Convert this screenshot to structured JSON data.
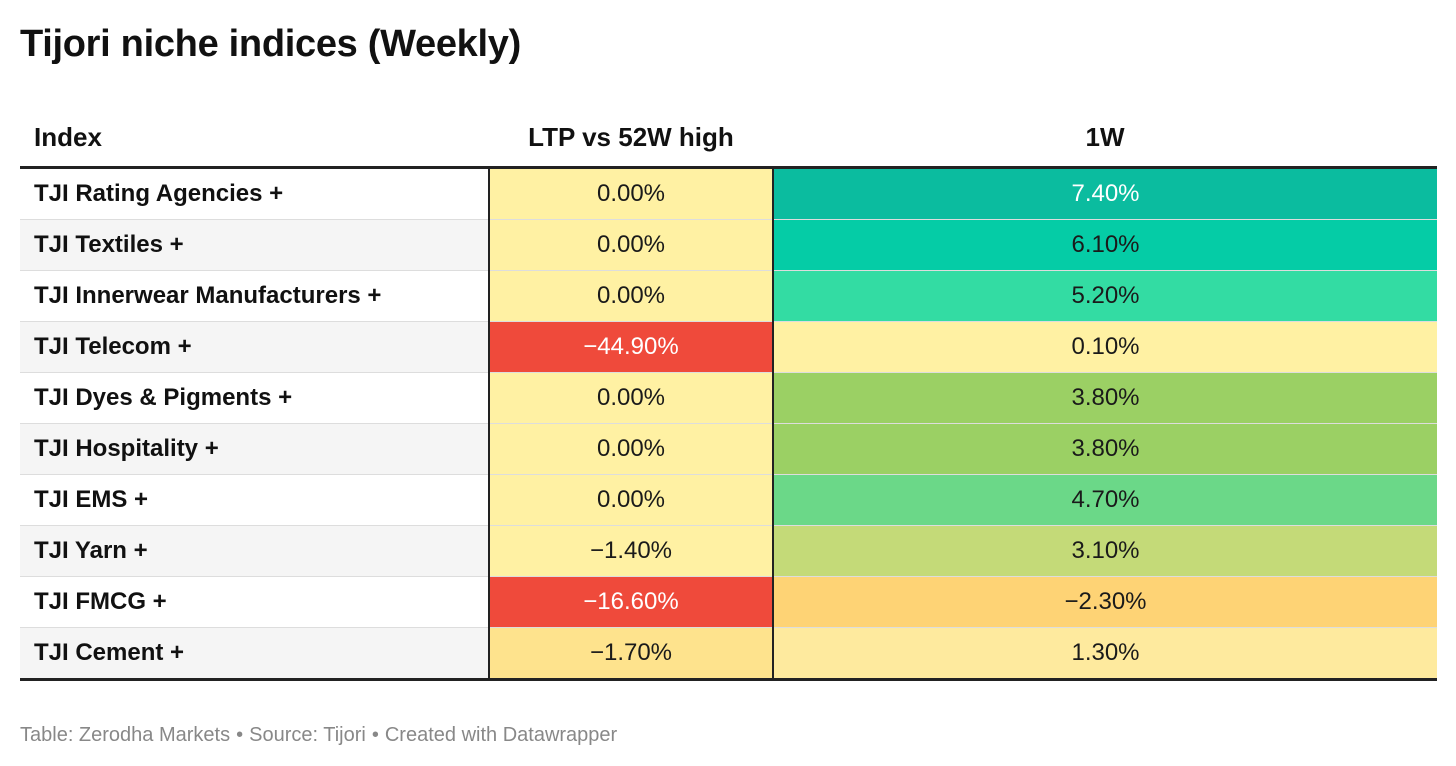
{
  "chart_data": {
    "type": "table",
    "title": "Tijori niche indices (Weekly)",
    "columns": [
      "Index",
      "LTP vs 52W high",
      "1W"
    ],
    "rows": [
      {
        "index": "TJI Rating Agencies +",
        "ltp_vs_52w_high": "0.00%",
        "one_week": "7.40%",
        "ltp_value": 0.0,
        "one_week_value": 7.4,
        "ltp_bg": "#fff1a3",
        "ltp_fg": "#1a1a1a",
        "one_week_bg": "#0bbc9f",
        "one_week_fg": "#ffffff"
      },
      {
        "index": "TJI Textiles +",
        "ltp_vs_52w_high": "0.00%",
        "one_week": "6.10%",
        "ltp_value": 0.0,
        "one_week_value": 6.1,
        "ltp_bg": "#fff1a3",
        "ltp_fg": "#1a1a1a",
        "one_week_bg": "#05cca6",
        "one_week_fg": "#1a1a1a"
      },
      {
        "index": "TJI Innerwear Manufacturers +",
        "ltp_vs_52w_high": "0.00%",
        "one_week": "5.20%",
        "ltp_value": 0.0,
        "one_week_value": 5.2,
        "ltp_bg": "#fff1a3",
        "ltp_fg": "#1a1a1a",
        "one_week_bg": "#33dca3",
        "one_week_fg": "#1a1a1a"
      },
      {
        "index": "TJI Telecom +",
        "ltp_vs_52w_high": "−44.90%",
        "one_week": "0.10%",
        "ltp_value": -44.9,
        "one_week_value": 0.1,
        "ltp_bg": "#ef4a3b",
        "ltp_fg": "#ffffff",
        "one_week_bg": "#fff1a3",
        "one_week_fg": "#1a1a1a"
      },
      {
        "index": "TJI Dyes & Pigments +",
        "ltp_vs_52w_high": "0.00%",
        "one_week": "3.80%",
        "ltp_value": 0.0,
        "one_week_value": 3.8,
        "ltp_bg": "#fff1a3",
        "ltp_fg": "#1a1a1a",
        "one_week_bg": "#9bd064",
        "one_week_fg": "#1a1a1a"
      },
      {
        "index": "TJI Hospitality +",
        "ltp_vs_52w_high": "0.00%",
        "one_week": "3.80%",
        "ltp_value": 0.0,
        "one_week_value": 3.8,
        "ltp_bg": "#fff1a3",
        "ltp_fg": "#1a1a1a",
        "one_week_bg": "#9bd064",
        "one_week_fg": "#1a1a1a"
      },
      {
        "index": "TJI EMS +",
        "ltp_vs_52w_high": "0.00%",
        "one_week": "4.70%",
        "ltp_value": 0.0,
        "one_week_value": 4.7,
        "ltp_bg": "#fff1a3",
        "ltp_fg": "#1a1a1a",
        "one_week_bg": "#6bd888",
        "one_week_fg": "#1a1a1a"
      },
      {
        "index": "TJI Yarn +",
        "ltp_vs_52w_high": "−1.40%",
        "one_week": "3.10%",
        "ltp_value": -1.4,
        "one_week_value": 3.1,
        "ltp_bg": "#fff1a3",
        "ltp_fg": "#1a1a1a",
        "one_week_bg": "#c4da78",
        "one_week_fg": "#1a1a1a"
      },
      {
        "index": "TJI FMCG +",
        "ltp_vs_52w_high": "−16.60%",
        "one_week": "−2.30%",
        "ltp_value": -16.6,
        "one_week_value": -2.3,
        "ltp_bg": "#ef4a3b",
        "ltp_fg": "#ffffff",
        "one_week_bg": "#fed375",
        "one_week_fg": "#1a1a1a"
      },
      {
        "index": "TJI Cement +",
        "ltp_vs_52w_high": "−1.70%",
        "one_week": "1.30%",
        "ltp_value": -1.7,
        "one_week_value": 1.3,
        "ltp_bg": "#fee38d",
        "ltp_fg": "#1a1a1a",
        "one_week_bg": "#feea9e",
        "one_week_fg": "#1a1a1a"
      }
    ]
  },
  "footer": {
    "table_credit": "Table: Zerodha Markets",
    "source": "Source: Tijori",
    "created_with": "Created with Datawrapper",
    "separator": "•"
  }
}
